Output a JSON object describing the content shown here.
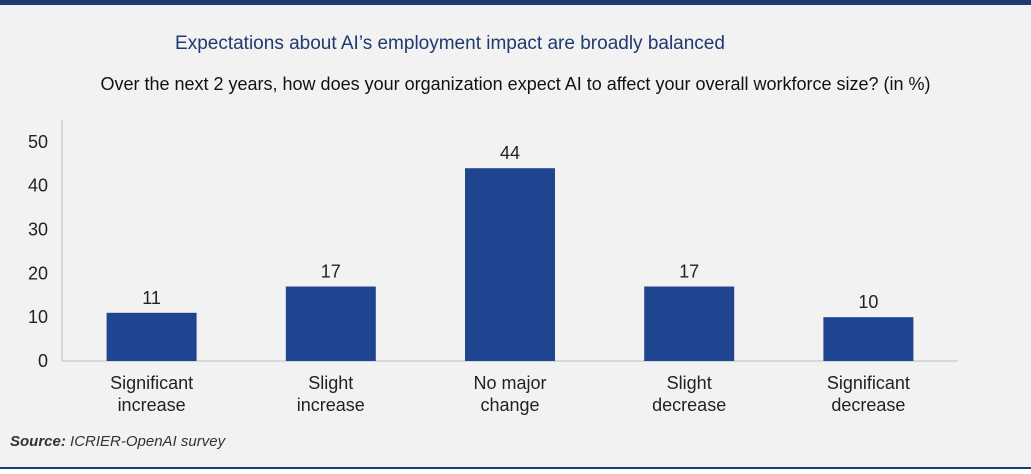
{
  "title": "Expectations about AI’s employment impact are broadly balanced",
  "subtitle": "Over the next 2 years, how does your organization expect AI to affect your overall workforce size? (in %)",
  "source": {
    "prefix": "Source:",
    "text": " ICRIER-OpenAI survey"
  },
  "colors": {
    "bar": "#1f4591",
    "title": "#1f3a70",
    "background": "#f2f2f2"
  },
  "chart_data": {
    "type": "bar",
    "title": "Expectations about AI’s employment impact are broadly balanced",
    "subtitle": "Over the next 2 years, how does your organization expect AI to affect your overall workforce size? (in %)",
    "categories": [
      [
        "Significant",
        "increase"
      ],
      [
        "Slight",
        "increase"
      ],
      [
        "No major",
        "change"
      ],
      [
        "Slight",
        "decrease"
      ],
      [
        "Significant",
        "decrease"
      ]
    ],
    "values": [
      11,
      17,
      44,
      17,
      10
    ],
    "data_labels": [
      "11",
      "17",
      "44",
      "17",
      "10"
    ],
    "ylim": [
      0,
      55
    ],
    "yticks": [
      0,
      10,
      20,
      30,
      40,
      50
    ],
    "xlabel": "",
    "ylabel": "",
    "grid": false,
    "legend": "none"
  }
}
